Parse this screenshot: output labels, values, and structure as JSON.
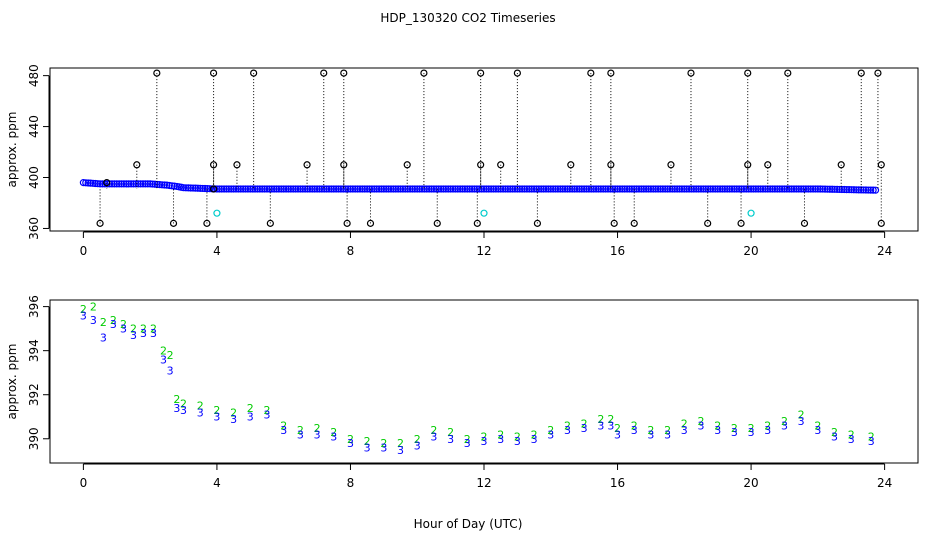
{
  "title": "HDP_130320  CO2 Timeseries",
  "xlabel": "Hour of Day (UTC)",
  "colors": {
    "blue": "#0000ff",
    "green": "#00cc00",
    "cyan": "#00cccc",
    "black": "#000000"
  },
  "chart_data": [
    {
      "type": "scatter",
      "ylabel": "approx. ppm",
      "xlim": [
        -1,
        25
      ],
      "ylim": [
        358,
        486
      ],
      "xticks": [
        0,
        4,
        8,
        12,
        16,
        20,
        24
      ],
      "yticks": [
        360,
        400,
        440,
        480
      ],
      "series": [
        {
          "marker": "circle",
          "color": "#0000ff",
          "description_of_trace": "dense run of points",
          "x": [
            0.0,
            0.5,
            1.0,
            1.5,
            2.0,
            2.5,
            2.8,
            3.0,
            4.0,
            5.0,
            6.0,
            7.0,
            8.0,
            10.0,
            12.0,
            14.0,
            16.0,
            18.0,
            20.0,
            22.0,
            23.8
          ],
          "y": [
            396,
            395,
            395,
            395,
            395,
            394,
            393,
            392,
            391,
            391,
            391,
            391,
            391,
            391,
            391,
            391,
            391,
            391,
            391,
            391,
            390
          ]
        },
        {
          "marker": "circle",
          "color": "#000000",
          "x": [
            0.5,
            0.7,
            1.6,
            2.2,
            2.7,
            3.7,
            3.9,
            3.9,
            3.9,
            4.6,
            5.1,
            5.6,
            6.7,
            7.2,
            7.8,
            7.8,
            7.9,
            8.6,
            9.7,
            10.2,
            10.6,
            11.8,
            11.9,
            11.9,
            12.5,
            13.0,
            13.6,
            14.6,
            15.2,
            15.8,
            15.8,
            15.9,
            16.5,
            17.6,
            18.2,
            18.7,
            19.7,
            19.9,
            19.9,
            20.5,
            21.1,
            21.6,
            22.7,
            23.3,
            23.8,
            23.9,
            23.9
          ],
          "y": [
            364,
            396,
            410,
            482,
            364,
            364,
            410,
            482,
            391,
            410,
            482,
            364,
            410,
            482,
            482,
            410,
            364,
            364,
            410,
            482,
            364,
            364,
            410,
            482,
            410,
            482,
            364,
            410,
            482,
            482,
            410,
            364,
            364,
            410,
            482,
            364,
            364,
            410,
            482,
            410,
            482,
            364,
            410,
            482,
            482,
            410,
            364
          ]
        },
        {
          "marker": "circle",
          "color": "#00cccc",
          "x": [
            4.0,
            12.0,
            20.0
          ],
          "y": [
            372,
            372,
            372
          ]
        }
      ]
    },
    {
      "type": "scatter",
      "ylabel": "approx. ppm",
      "xlim": [
        -1,
        25
      ],
      "ylim": [
        388.9,
        396.3
      ],
      "xticks": [
        0,
        4,
        8,
        12,
        16,
        20,
        24
      ],
      "yticks": [
        390,
        392,
        394,
        396
      ],
      "series": [
        {
          "marker": "2",
          "color": "#00cc00",
          "x": [
            0.0,
            0.3,
            0.6,
            0.9,
            1.2,
            1.5,
            1.8,
            2.1,
            2.4,
            2.6,
            2.8,
            3.0,
            3.5,
            4.0,
            4.5,
            5.0,
            5.5,
            6.0,
            6.5,
            7.0,
            7.5,
            8.0,
            8.5,
            9.0,
            9.5,
            10.0,
            10.5,
            11.0,
            11.5,
            12.0,
            12.5,
            13.0,
            13.5,
            14.0,
            14.5,
            15.0,
            15.5,
            15.8,
            16.0,
            16.5,
            17.0,
            17.5,
            18.0,
            18.5,
            19.0,
            19.5,
            20.0,
            20.5,
            21.0,
            21.5,
            22.0,
            22.5,
            23.0,
            23.6
          ],
          "y": [
            395.9,
            396.0,
            395.3,
            395.4,
            395.2,
            395.0,
            395.0,
            395.0,
            394.0,
            393.8,
            391.8,
            391.6,
            391.5,
            391.3,
            391.2,
            391.4,
            391.3,
            390.6,
            390.4,
            390.5,
            390.3,
            390.0,
            389.9,
            389.8,
            389.8,
            390.0,
            390.4,
            390.3,
            390.0,
            390.1,
            390.2,
            390.1,
            390.2,
            390.4,
            390.6,
            390.7,
            390.9,
            390.9,
            390.5,
            390.6,
            390.4,
            390.4,
            390.7,
            390.8,
            390.6,
            390.5,
            390.5,
            390.6,
            390.8,
            391.1,
            390.6,
            390.3,
            390.2,
            390.1
          ]
        },
        {
          "marker": "3",
          "color": "#0000ff",
          "x": [
            0.0,
            0.3,
            0.6,
            0.9,
            1.2,
            1.5,
            1.8,
            2.1,
            2.4,
            2.6,
            2.8,
            3.0,
            3.5,
            4.0,
            4.5,
            5.0,
            5.5,
            6.0,
            6.5,
            7.0,
            7.5,
            8.0,
            8.5,
            9.0,
            9.5,
            10.0,
            10.5,
            11.0,
            11.5,
            12.0,
            12.5,
            13.0,
            13.5,
            14.0,
            14.5,
            15.0,
            15.5,
            15.8,
            16.0,
            16.5,
            17.0,
            17.5,
            18.0,
            18.5,
            19.0,
            19.5,
            20.0,
            20.5,
            21.0,
            21.5,
            22.0,
            22.5,
            23.0,
            23.6
          ],
          "y": [
            395.6,
            395.4,
            394.6,
            395.2,
            395.0,
            394.7,
            394.8,
            394.8,
            393.6,
            393.1,
            391.4,
            391.3,
            391.2,
            391.0,
            390.9,
            391.0,
            391.1,
            390.4,
            390.2,
            390.2,
            390.1,
            389.8,
            389.6,
            389.6,
            389.5,
            389.7,
            390.1,
            390.0,
            389.8,
            389.9,
            390.0,
            389.9,
            390.0,
            390.2,
            390.4,
            390.5,
            390.6,
            390.6,
            390.2,
            390.4,
            390.2,
            390.2,
            390.4,
            390.6,
            390.4,
            390.3,
            390.3,
            390.4,
            390.6,
            390.8,
            390.4,
            390.1,
            390.0,
            389.9
          ]
        }
      ]
    }
  ]
}
